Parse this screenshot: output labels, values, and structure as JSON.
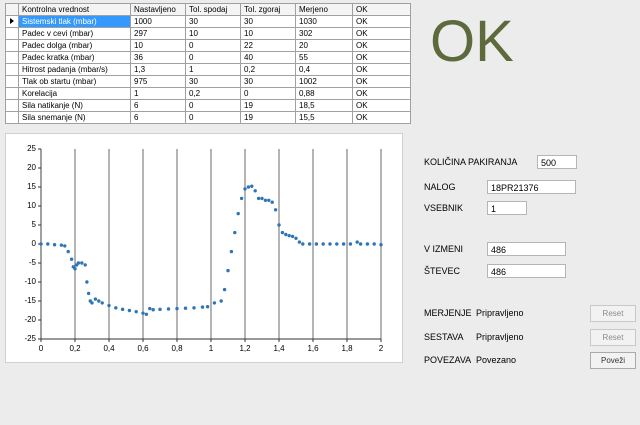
{
  "table": {
    "columns": [
      "Kontrolna vrednost",
      "Nastavljeno",
      "Tol. spodaj",
      "Tol. zgoraj",
      "Merjeno",
      "OK"
    ],
    "rows": [
      [
        "Sistemski tlak (mbar)",
        "1000",
        "30",
        "30",
        "1030",
        "OK"
      ],
      [
        "Padec v cevi (mbar)",
        "297",
        "10",
        "10",
        "302",
        "OK"
      ],
      [
        "Padec dolga (mbar)",
        "10",
        "0",
        "22",
        "20",
        "OK"
      ],
      [
        "Padec kratka (mbar)",
        "36",
        "0",
        "40",
        "55",
        "OK"
      ],
      [
        "Hitrost padanja (mbar/s)",
        "1,3",
        "1",
        "0,2",
        "0,4",
        "OK"
      ],
      [
        "Tlak ob startu (mbar)",
        "975",
        "30",
        "30",
        "1002",
        "OK"
      ],
      [
        "Korelacija",
        "1",
        "0,2",
        "0",
        "0,88",
        "OK"
      ],
      [
        "Sila natikanje (N)",
        "6",
        "0",
        "19",
        "18,5",
        "OK"
      ],
      [
        "Sila snemanje (N)",
        "6",
        "0",
        "19",
        "15,5",
        "OK"
      ]
    ]
  },
  "status": "OK",
  "chart_data": {
    "type": "scatter",
    "color": "#2e75b6",
    "x": [
      0,
      0.04,
      0.08,
      0.12,
      0.14,
      0.16,
      0.18,
      0.19,
      0.2,
      0.21,
      0.22,
      0.24,
      0.26,
      0.27,
      0.28,
      0.29,
      0.3,
      0.32,
      0.34,
      0.36,
      0.4,
      0.44,
      0.48,
      0.52,
      0.56,
      0.6,
      0.62,
      0.64,
      0.66,
      0.7,
      0.75,
      0.8,
      0.85,
      0.9,
      0.95,
      0.98,
      1.02,
      1.06,
      1.08,
      1.1,
      1.12,
      1.14,
      1.16,
      1.18,
      1.2,
      1.22,
      1.24,
      1.26,
      1.28,
      1.3,
      1.32,
      1.34,
      1.36,
      1.38,
      1.4,
      1.42,
      1.44,
      1.46,
      1.48,
      1.5,
      1.52,
      1.54,
      1.58,
      1.62,
      1.66,
      1.7,
      1.74,
      1.78,
      1.82,
      1.86,
      1.88,
      1.92,
      1.96,
      2.0
    ],
    "values": [
      0,
      0,
      -0.2,
      -0.3,
      -0.5,
      -2,
      -4,
      -6,
      -6.5,
      -5.5,
      -5,
      -5,
      -5.5,
      -10,
      -13,
      -15,
      -15.5,
      -14.5,
      -15,
      -15.5,
      -16.2,
      -16.8,
      -17.2,
      -17.5,
      -17.8,
      -18.2,
      -18.5,
      -17,
      -17.3,
      -17.2,
      -17.1,
      -17,
      -16.9,
      -16.8,
      -16.6,
      -16.5,
      -15.5,
      -15,
      -12,
      -7,
      -2,
      3,
      8,
      12,
      14.5,
      15,
      15.2,
      14,
      12,
      12,
      11.5,
      11.5,
      11,
      9,
      5,
      3,
      2.5,
      2.2,
      2,
      1.5,
      0.5,
      0,
      0,
      0,
      0,
      0,
      0,
      0,
      0,
      0.5,
      0,
      0,
      0,
      -0.2
    ],
    "xlim": [
      0,
      2
    ],
    "ylim": [
      -25,
      25
    ],
    "xticks": [
      0,
      {
        "value": 0.2,
        "label": "0,2"
      },
      {
        "value": 0.4,
        "label": "0,4"
      },
      {
        "value": 0.6,
        "label": "0,6"
      },
      {
        "value": 0.8,
        "label": "0,8"
      },
      1,
      {
        "value": 1.2,
        "label": "1,2"
      },
      {
        "value": 1.4,
        "label": "1,4"
      },
      {
        "value": 1.6,
        "label": "1,6"
      },
      {
        "value": 1.8,
        "label": "1,8"
      },
      2
    ],
    "yticks": [
      25,
      20,
      15,
      10,
      5,
      0,
      -5,
      -10,
      -15,
      -20,
      -25
    ],
    "grid": "x"
  },
  "fields": [
    {
      "label": "KOLIČINA PAKIRANJA",
      "value": "500"
    },
    {
      "label": "NALOG",
      "value": "18PR21376"
    },
    {
      "label": "VSEBNIK",
      "value": "1"
    },
    {
      "label": "V IZMENI",
      "value": "486"
    },
    {
      "label": "ŠTEVEC",
      "value": "486"
    }
  ],
  "states": [
    {
      "label": "MERJENJE",
      "value": "Pripravljeno",
      "button": "Reset"
    },
    {
      "label": "SESTAVA",
      "value": "Pripravljeno",
      "button": "Reset"
    },
    {
      "label": "POVEZAVA",
      "value": "Povezano",
      "button": "Poveži"
    }
  ]
}
